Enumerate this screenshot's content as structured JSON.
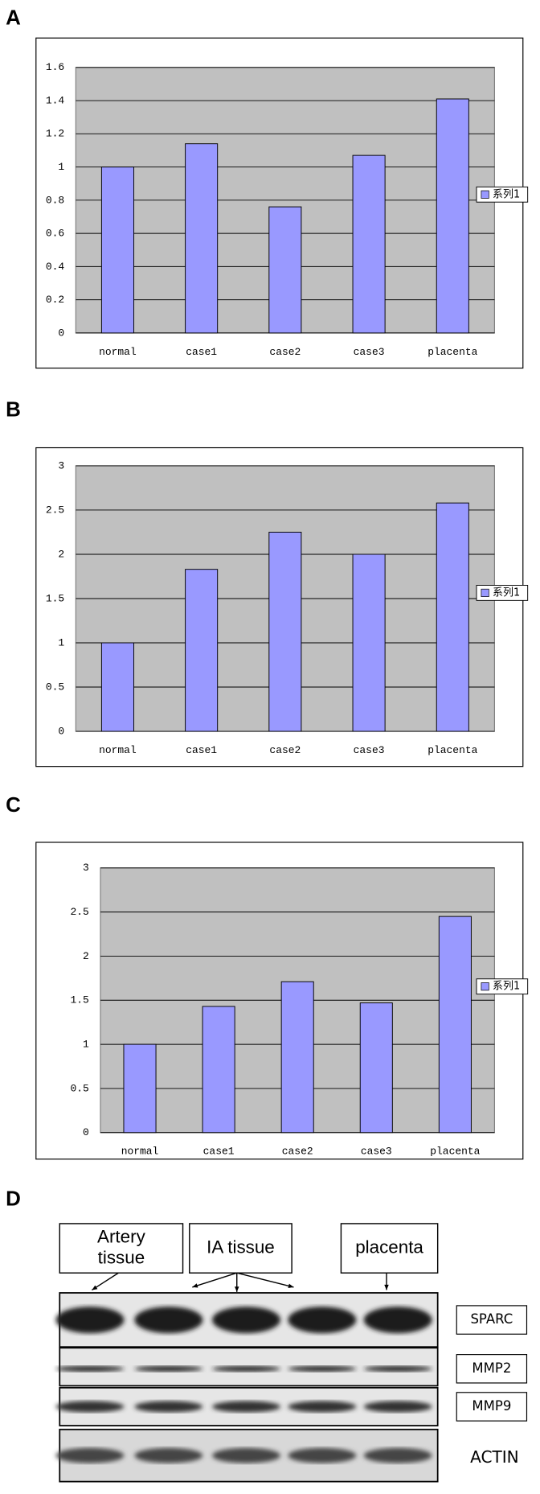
{
  "chart_data": [
    {
      "type": "bar",
      "panel": "A",
      "categories": [
        "normal",
        "case1",
        "case2",
        "case3",
        "placenta"
      ],
      "series": [
        {
          "name": "系列1",
          "color": "#9999ff",
          "values": [
            1,
            1.14,
            0.76,
            1.07,
            1.41
          ]
        }
      ],
      "ylim": [
        0,
        1.6
      ],
      "yticks": [
        0,
        0.2,
        0.4,
        0.6,
        0.8,
        1,
        1.2,
        1.4,
        1.6
      ],
      "grid": true
    },
    {
      "type": "bar",
      "panel": "B",
      "categories": [
        "normal",
        "case1",
        "case2",
        "case3",
        "placenta"
      ],
      "series": [
        {
          "name": "系列1",
          "color": "#9999ff",
          "values": [
            1,
            1.83,
            2.25,
            2,
            2.58
          ]
        }
      ],
      "ylim": [
        0,
        3
      ],
      "yticks": [
        0,
        0.5,
        1,
        1.5,
        2,
        2.5,
        3
      ],
      "grid": true
    },
    {
      "type": "bar",
      "panel": "C",
      "categories": [
        "normal",
        "case1",
        "case2",
        "case3",
        "placenta"
      ],
      "series": [
        {
          "name": "系列1",
          "color": "#9999ff",
          "values": [
            1,
            1.43,
            1.71,
            1.47,
            2.45
          ]
        }
      ],
      "ylim": [
        0,
        3
      ],
      "yticks": [
        0,
        0.5,
        1,
        1.5,
        2,
        2.5,
        3
      ],
      "grid": true
    }
  ],
  "blot": {
    "panel": "D",
    "groups": [
      "Artery tissue",
      "IA tissue",
      "placenta"
    ],
    "rows": [
      "SPARC",
      "MMP2",
      "MMP9",
      "ACTIN"
    ]
  }
}
